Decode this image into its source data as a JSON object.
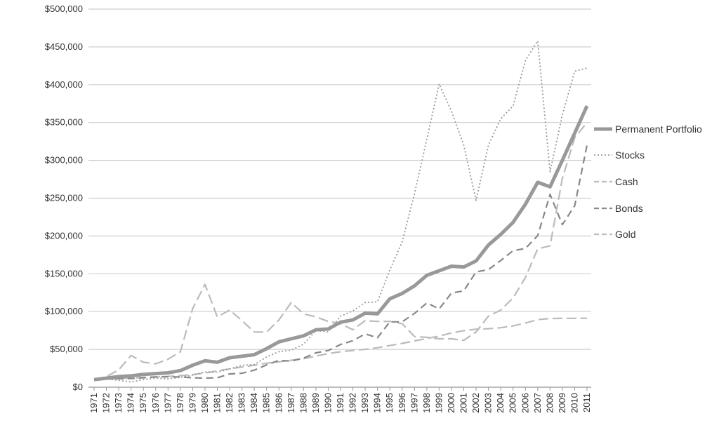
{
  "chart_data": {
    "type": "line",
    "title": "",
    "xlabel": "",
    "ylabel": "",
    "ylim": [
      0,
      500000
    ],
    "grid": true,
    "legend_position": "right",
    "y_ticks": [
      0,
      50000,
      100000,
      150000,
      200000,
      250000,
      300000,
      350000,
      400000,
      450000,
      500000
    ],
    "y_tick_labels": [
      "$0",
      "$50,000",
      "$100,000",
      "$150,000",
      "$200,000",
      "$250,000",
      "$300,000",
      "$350,000",
      "$400,000",
      "$450,000",
      "$500,000"
    ],
    "categories": [
      "1971",
      "1972",
      "1973",
      "1974",
      "1975",
      "1976",
      "1977",
      "1978",
      "1979",
      "1980",
      "1981",
      "1982",
      "1983",
      "1984",
      "1985",
      "1986",
      "1987",
      "1988",
      "1989",
      "1990",
      "1991",
      "1992",
      "1993",
      "1994",
      "1995",
      "1996",
      "1997",
      "1998",
      "1999",
      "2000",
      "2001",
      "2002",
      "2003",
      "2004",
      "2005",
      "2006",
      "2007",
      "2008",
      "2009",
      "2010",
      "2011"
    ],
    "series": [
      {
        "name": "Permanent Portfolio",
        "color": "#999999",
        "style": "solid-thick",
        "values": [
          10000,
          12000,
          14000,
          15000,
          17000,
          18000,
          19000,
          22000,
          29000,
          35000,
          33000,
          39000,
          41000,
          43000,
          51000,
          60000,
          64000,
          68000,
          76000,
          77000,
          86000,
          89000,
          98000,
          97000,
          117000,
          124000,
          134000,
          148000,
          154000,
          160000,
          159000,
          167000,
          188000,
          202000,
          218000,
          242000,
          271000,
          265000,
          300000,
          336000,
          372000
        ]
      },
      {
        "name": "Stocks",
        "color": "#999999",
        "style": "dotted",
        "values": [
          10000,
          11000,
          9000,
          7000,
          10000,
          12000,
          11000,
          13000,
          16000,
          20000,
          20000,
          24000,
          29000,
          30000,
          40000,
          47000,
          49000,
          57000,
          75000,
          73000,
          94000,
          101000,
          112000,
          113000,
          155000,
          192000,
          256000,
          328000,
          401000,
          365000,
          320000,
          247000,
          320000,
          355000,
          372000,
          432000,
          458000,
          285000,
          360000,
          418000,
          422000
        ]
      },
      {
        "name": "Cash",
        "color": "#bbbbbb",
        "style": "long-dash",
        "values": [
          10000,
          10500,
          11200,
          12100,
          12900,
          13600,
          14300,
          15300,
          16700,
          18700,
          21600,
          24300,
          26600,
          29100,
          31700,
          33600,
          35600,
          37800,
          41100,
          44400,
          46900,
          48600,
          50100,
          52200,
          55100,
          58000,
          61200,
          64500,
          67500,
          71800,
          74800,
          76700,
          77400,
          78700,
          81100,
          84900,
          89300,
          90900,
          91000,
          91100,
          91200
        ]
      },
      {
        "name": "Bonds",
        "color": "#888888",
        "style": "dashed",
        "values": [
          10000,
          11000,
          11200,
          11500,
          12500,
          13500,
          13800,
          13500,
          12500,
          12000,
          12500,
          17500,
          18500,
          22500,
          29500,
          35500,
          34500,
          38500,
          45500,
          48500,
          56500,
          61500,
          70500,
          65500,
          86500,
          86500,
          97500,
          111500,
          103500,
          124500,
          127500,
          152500,
          155500,
          167500,
          180500,
          183500,
          200500,
          255000,
          215000,
          240000,
          320000
        ]
      },
      {
        "name": "Gold",
        "color": "#bbbbbb",
        "style": "long-dash",
        "values": [
          10000,
          14000,
          23000,
          42000,
          33000,
          31000,
          37000,
          47000,
          104000,
          136000,
          93000,
          102000,
          88000,
          73000,
          73000,
          89000,
          112000,
          97000,
          93000,
          87000,
          84000,
          76000,
          88000,
          87000,
          87000,
          84000,
          67000,
          66000,
          64000,
          64000,
          62000,
          73000,
          94000,
          102000,
          118000,
          145000,
          183000,
          187000,
          276000,
          330000,
          350000
        ]
      }
    ]
  }
}
